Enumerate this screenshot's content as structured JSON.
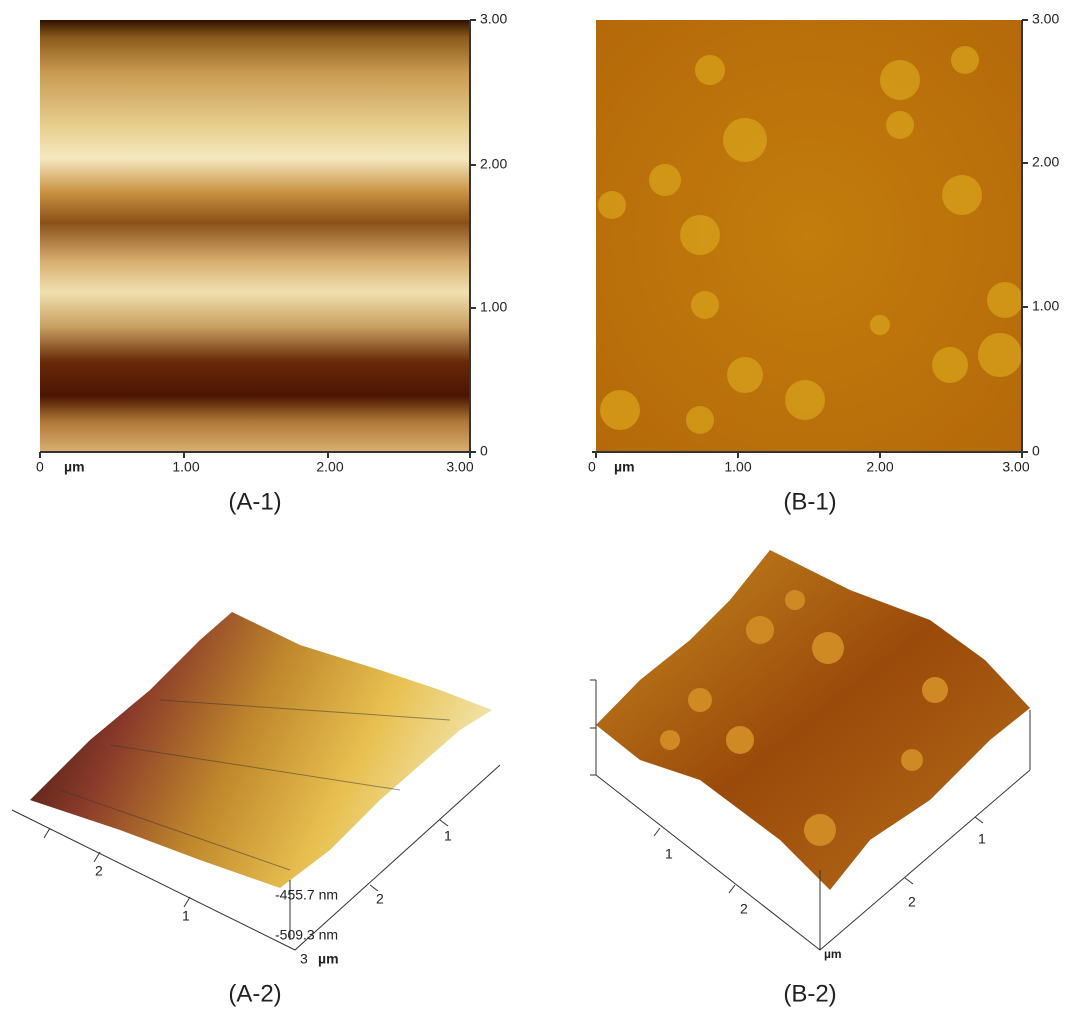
{
  "panels": [
    {
      "label": "(A-1)",
      "y_ticks": [
        "3.00",
        "2.00",
        "1.00",
        "0"
      ],
      "x_ticks": [
        "0",
        "1.00",
        "2.00",
        "3.00"
      ],
      "unit": "µm"
    },
    {
      "label": "(B-1)",
      "y_ticks": [
        "3.00",
        "2.00",
        "1.00",
        "0"
      ],
      "x_ticks": [
        "0",
        "1.00",
        "2.00",
        "3.00"
      ],
      "unit": "µm"
    },
    {
      "label": "(A-2)",
      "left_ticks": [
        "2",
        "1"
      ],
      "right_ticks": [
        "1",
        "2",
        "3"
      ],
      "unit": "µm",
      "z_labels": [
        "-455.7 nm",
        "-509.3 nm"
      ]
    },
    {
      "label": "(B-2)",
      "left_ticks": [
        "1",
        "2"
      ],
      "right_ticks": [
        "1",
        "2"
      ],
      "unit": "µm"
    }
  ]
}
